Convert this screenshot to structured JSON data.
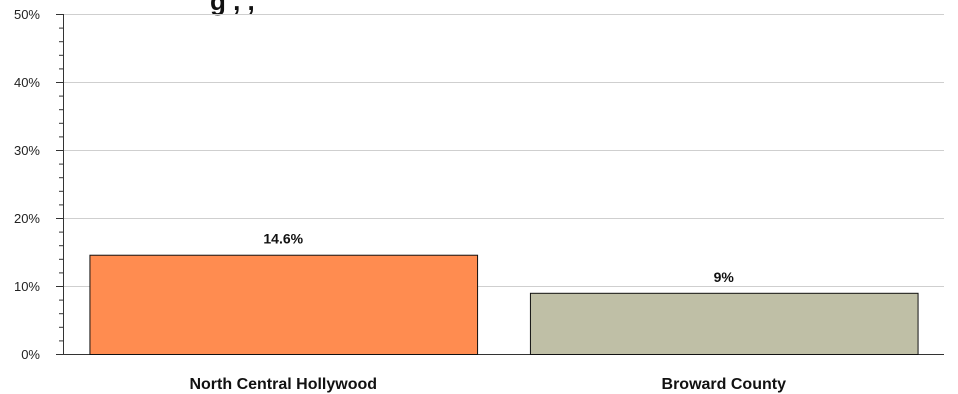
{
  "chart_data": {
    "type": "bar",
    "categories": [
      "North Central Hollywood",
      "Broward County"
    ],
    "values": [
      14.6,
      9
    ],
    "value_labels": [
      "14.6%",
      "9%"
    ],
    "bar_colors": [
      "#FF8C50",
      "#BFBFA6"
    ],
    "ylim": [
      0,
      50
    ],
    "y_ticks": [
      0,
      10,
      20,
      30,
      40,
      50
    ],
    "y_tick_labels": [
      "0%",
      "10%",
      "20%",
      "30%",
      "40%",
      "50%"
    ],
    "grid": true,
    "legend": "none",
    "title": ""
  }
}
